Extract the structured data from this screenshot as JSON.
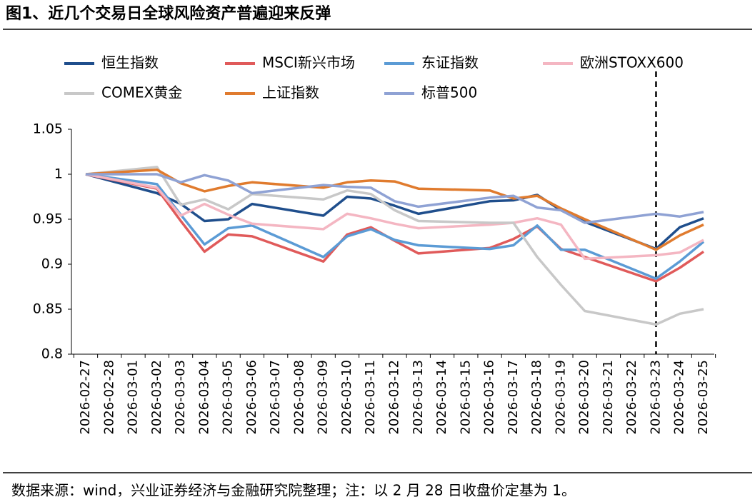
{
  "chart_data": {
    "type": "line",
    "title": "图1、近几个交易日全球风险资产普遍迎来反弹",
    "source": "数据来源：wind，兴业证券经济与金融研究院整理；注：以 2 月 28 日收盘价定基为 1。",
    "categories": [
      "2026-02-27",
      "2026-02-28",
      "2026-03-01",
      "2026-03-02",
      "2026-03-03",
      "2026-03-04",
      "2026-03-05",
      "2026-03-06",
      "2026-03-07",
      "2026-03-08",
      "2026-03-09",
      "2026-03-10",
      "2026-03-11",
      "2026-03-12",
      "2026-03-13",
      "2026-03-14",
      "2026-03-15",
      "2026-03-16",
      "2026-03-17",
      "2026-03-18",
      "2026-03-19",
      "2026-03-20",
      "2026-03-21",
      "2026-03-22",
      "2026-03-23",
      "2026-03-24",
      "2026-03-25"
    ],
    "connect_gaps": true,
    "vline": "2026-03-23",
    "ylim": [
      0.8,
      1.05
    ],
    "yticks": [
      0.8,
      0.85,
      0.9,
      0.95,
      1,
      1.05
    ],
    "series": [
      {
        "name": "恒生指数",
        "color": "#1f4e8c",
        "values": [
          1,
          null,
          null,
          0.979,
          0.967,
          0.948,
          0.95,
          0.967,
          null,
          null,
          0.954,
          0.975,
          0.973,
          0.965,
          0.956,
          null,
          null,
          0.97,
          0.971,
          0.977,
          0.96,
          0.947,
          null,
          null,
          0.917,
          0.941,
          0.951
        ]
      },
      {
        "name": "MSCI新兴市场",
        "color": "#e05a5a",
        "values": [
          1,
          null,
          null,
          0.984,
          0.948,
          0.914,
          0.933,
          0.931,
          null,
          null,
          0.903,
          0.933,
          0.941,
          0.926,
          0.912,
          null,
          null,
          0.918,
          0.928,
          0.942,
          0.917,
          0.908,
          null,
          null,
          0.881,
          0.896,
          0.914
        ]
      },
      {
        "name": "东证指数",
        "color": "#5b9bd5",
        "values": [
          1,
          null,
          null,
          0.989,
          0.955,
          0.922,
          0.94,
          0.943,
          null,
          null,
          0.908,
          0.931,
          0.939,
          0.927,
          0.921,
          null,
          null,
          0.917,
          0.921,
          0.943,
          0.916,
          0.916,
          null,
          null,
          0.884,
          0.903,
          0.925
        ]
      },
      {
        "name": "欧洲STOXX600",
        "color": "#f4b6c2",
        "values": [
          1,
          null,
          null,
          0.985,
          0.954,
          0.967,
          0.955,
          0.945,
          null,
          null,
          0.939,
          0.956,
          0.951,
          0.945,
          0.94,
          null,
          null,
          0.944,
          0.946,
          0.951,
          0.944,
          0.906,
          null,
          null,
          0.91,
          0.913,
          0.927
        ]
      },
      {
        "name": "COMEX黄金",
        "color": "#c8c8c8",
        "values": [
          1,
          null,
          null,
          1.008,
          0.966,
          0.972,
          0.961,
          0.978,
          null,
          null,
          0.972,
          0.982,
          0.978,
          0.96,
          0.948,
          null,
          null,
          0.946,
          0.946,
          0.908,
          0.877,
          0.848,
          null,
          null,
          0.833,
          0.845,
          0.85
        ]
      },
      {
        "name": "上证指数",
        "color": "#e07b2e",
        "values": [
          1,
          null,
          null,
          1.005,
          0.99,
          0.981,
          0.987,
          0.991,
          null,
          null,
          0.985,
          0.991,
          0.993,
          0.992,
          0.984,
          null,
          null,
          0.982,
          0.973,
          0.976,
          0.962,
          0.95,
          null,
          null,
          0.916,
          0.932,
          0.944
        ]
      },
      {
        "name": "标普500",
        "color": "#8fa2d4",
        "values": [
          1,
          null,
          null,
          1.0,
          0.991,
          0.999,
          0.993,
          0.979,
          null,
          null,
          0.988,
          0.986,
          0.985,
          0.97,
          0.964,
          null,
          null,
          0.974,
          0.976,
          0.963,
          0.96,
          0.946,
          null,
          null,
          0.956,
          0.953,
          0.958
        ]
      }
    ]
  }
}
